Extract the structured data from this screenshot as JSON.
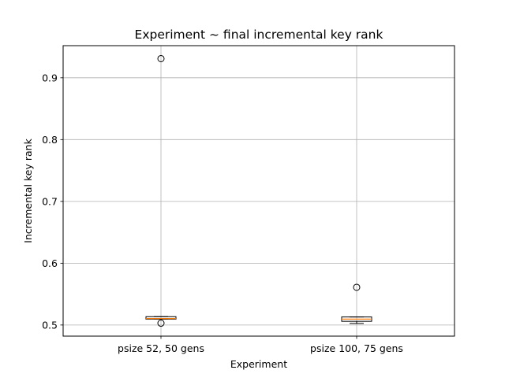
{
  "chart_data": {
    "type": "box",
    "title": "Experiment ~ final incremental key rank",
    "xlabel": "Experiment",
    "ylabel": "Incremental key rank",
    "categories": [
      "psize 52, 50 gens",
      "psize 100, 75 gens"
    ],
    "ylim": [
      0.482,
      0.952
    ],
    "yticks": [
      0.5,
      0.6,
      0.7,
      0.8,
      0.9
    ],
    "ytick_labels": [
      "0.5",
      "0.6",
      "0.7",
      "0.8",
      "0.9"
    ],
    "grid": true,
    "boxes": [
      {
        "category": "psize 52, 50 gens",
        "whisker_low": 0.5095,
        "q1": 0.5095,
        "median": 0.5105,
        "q3": 0.5135,
        "whisker_high": 0.5135,
        "outliers": [
          0.931,
          0.503
        ]
      },
      {
        "category": "psize 100, 75 gens",
        "whisker_low": 0.5025,
        "q1": 0.506,
        "median": 0.5095,
        "q3": 0.513,
        "whisker_high": 0.513,
        "outliers": [
          0.561
        ]
      }
    ],
    "colors": {
      "box": "#000000",
      "median": "#ff7f0e",
      "grid": "#b0b0b0",
      "outlier_edge": "#000000"
    }
  }
}
